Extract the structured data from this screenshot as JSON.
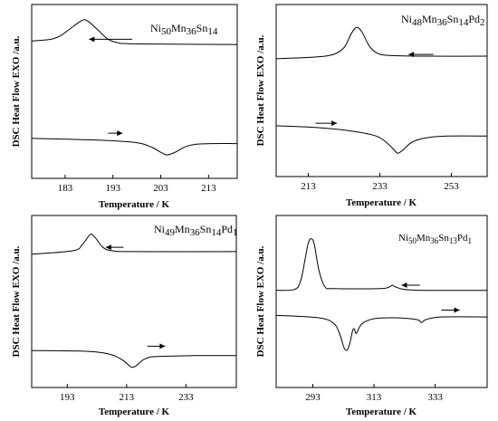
{
  "chart_data": [
    {
      "type": "line",
      "id": "p1",
      "label": {
        "element": "Ni",
        "s1": "50",
        "mn": "Mn",
        "s2": "36",
        "sn": "Sn",
        "s3": "14",
        "pd": "",
        "s4": ""
      },
      "ylabel": "DSC Heat Flow EXO /a.u.",
      "xlabel": "Temperature / K",
      "xlim": [
        176,
        219
      ],
      "ylim": [
        0,
        1
      ],
      "xticks": [
        183,
        193,
        203,
        213
      ],
      "xtick_labels": [
        "183",
        "193",
        "203",
        "213"
      ],
      "series": [
        {
          "direction": "cooling",
          "arrow": "left",
          "arrow_x": [
            188,
            197
          ],
          "arrow_y": 0.8,
          "points": [
            [
              176,
              0.79
            ],
            [
              180,
              0.8
            ],
            [
              182,
              0.82
            ],
            [
              184,
              0.86
            ],
            [
              186,
              0.9
            ],
            [
              187,
              0.913
            ],
            [
              188,
              0.9
            ],
            [
              190,
              0.85
            ],
            [
              192,
              0.8
            ],
            [
              194,
              0.78
            ],
            [
              196,
              0.775
            ],
            [
              205,
              0.772
            ],
            [
              219,
              0.77
            ]
          ]
        },
        {
          "direction": "heating",
          "arrow": "right",
          "arrow_x": [
            192,
            195
          ],
          "arrow_y": 0.26,
          "points": [
            [
              176,
              0.23
            ],
            [
              190,
              0.22
            ],
            [
              198,
              0.205
            ],
            [
              201,
              0.18
            ],
            [
              203,
              0.15
            ],
            [
              204.3,
              0.135
            ],
            [
              206,
              0.15
            ],
            [
              208,
              0.18
            ],
            [
              210,
              0.195
            ],
            [
              214,
              0.2
            ],
            [
              219,
              0.2
            ]
          ]
        }
      ]
    },
    {
      "type": "line",
      "id": "p2",
      "label": {
        "element": "Ni",
        "s1": "48",
        "mn": "Mn",
        "s2": "36",
        "sn": "Sn",
        "s3": "14",
        "pd": "Pd",
        "s4": "2"
      },
      "ylabel": "DSC Heat Flow EXO /a.u.",
      "xlabel": "Temperature / K",
      "xlim": [
        204,
        263
      ],
      "ylim": [
        0,
        1
      ],
      "xticks": [
        213,
        233,
        253
      ],
      "xtick_labels": [
        "213",
        "233",
        "253"
      ],
      "series": [
        {
          "direction": "cooling",
          "arrow": "left",
          "arrow_x": [
            241,
            248
          ],
          "arrow_y": 0.71,
          "points": [
            [
              204,
              0.685
            ],
            [
              215,
              0.695
            ],
            [
              220,
              0.71
            ],
            [
              223,
              0.75
            ],
            [
              225,
              0.83
            ],
            [
              226.5,
              0.868
            ],
            [
              228,
              0.84
            ],
            [
              230,
              0.76
            ],
            [
              232,
              0.72
            ],
            [
              235,
              0.705
            ],
            [
              245,
              0.7
            ],
            [
              263,
              0.7
            ]
          ]
        },
        {
          "direction": "heating",
          "arrow": "right",
          "arrow_x": [
            215,
            221
          ],
          "arrow_y": 0.31,
          "points": [
            [
              204,
              0.295
            ],
            [
              215,
              0.285
            ],
            [
              225,
              0.265
            ],
            [
              232,
              0.235
            ],
            [
              235,
              0.195
            ],
            [
              237,
              0.155
            ],
            [
              238,
              0.135
            ],
            [
              239.5,
              0.155
            ],
            [
              242,
              0.2
            ],
            [
              246,
              0.225
            ],
            [
              252,
              0.235
            ],
            [
              263,
              0.235
            ]
          ]
        }
      ]
    },
    {
      "type": "line",
      "id": "p3",
      "label": {
        "element": "Ni",
        "s1": "49",
        "mn": "Mn",
        "s2": "36",
        "sn": "Sn",
        "s3": "14",
        "pd": "Pd",
        "s4": "1"
      },
      "ylabel": "DSC Heat Flow EXO /a.u.",
      "xlabel": "Temperature / K",
      "xlim": [
        181,
        250
      ],
      "ylim": [
        0,
        1
      ],
      "xticks": [
        193,
        213,
        233
      ],
      "xtick_labels": [
        "193",
        "213",
        "233"
      ],
      "series": [
        {
          "direction": "cooling",
          "arrow": "left",
          "arrow_x": [
            206,
            212
          ],
          "arrow_y": 0.815,
          "points": [
            [
              181,
              0.775
            ],
            [
              195,
              0.795
            ],
            [
              198,
              0.83
            ],
            [
              200,
              0.875
            ],
            [
              201,
              0.892
            ],
            [
              202.5,
              0.87
            ],
            [
              205,
              0.815
            ],
            [
              208,
              0.795
            ],
            [
              215,
              0.79
            ],
            [
              250,
              0.79
            ]
          ]
        },
        {
          "direction": "heating",
          "arrow": "right",
          "arrow_x": [
            220,
            226
          ],
          "arrow_y": 0.24,
          "points": [
            [
              181,
              0.215
            ],
            [
              200,
              0.21
            ],
            [
              208,
              0.19
            ],
            [
              212,
              0.155
            ],
            [
              214,
              0.125
            ],
            [
              215,
              0.117
            ],
            [
              216.5,
              0.13
            ],
            [
              219,
              0.165
            ],
            [
              223,
              0.18
            ],
            [
              235,
              0.185
            ],
            [
              250,
              0.185
            ]
          ]
        }
      ]
    },
    {
      "type": "line",
      "id": "p4",
      "label": {
        "element": "Ni",
        "s1": "50",
        "mn": "Mn",
        "s2": "36",
        "sn": "Sn",
        "s3": "13",
        "pd": "Pd",
        "s4": "1"
      },
      "ylabel": "DSC Heat Flow EXO /a.u.",
      "xlabel": "Temperature / K",
      "xlim": [
        281,
        350
      ],
      "ylim": [
        0,
        1
      ],
      "xticks": [
        293,
        313,
        333
      ],
      "xtick_labels": [
        "293",
        "313",
        "333"
      ],
      "series": [
        {
          "direction": "cooling",
          "arrow": "left",
          "arrow_x": [
            322,
            328
          ],
          "arrow_y": 0.595,
          "points": [
            [
              281,
              0.565
            ],
            [
              287,
              0.57
            ],
            [
              289,
              0.62
            ],
            [
              290.5,
              0.75
            ],
            [
              291.5,
              0.84
            ],
            [
              292.5,
              0.865
            ],
            [
              293.5,
              0.83
            ],
            [
              295,
              0.68
            ],
            [
              297,
              0.585
            ],
            [
              300,
              0.575
            ],
            [
              315,
              0.575
            ],
            [
              318,
              0.585
            ],
            [
              319,
              0.595
            ],
            [
              320,
              0.585
            ],
            [
              323,
              0.57
            ],
            [
              330,
              0.565
            ],
            [
              350,
              0.565
            ]
          ]
        },
        {
          "direction": "heating",
          "arrow": "right",
          "arrow_x": [
            335,
            341
          ],
          "arrow_y": 0.45,
          "points": [
            [
              281,
              0.42
            ],
            [
              295,
              0.405
            ],
            [
              300,
              0.37
            ],
            [
              302,
              0.3
            ],
            [
              303,
              0.24
            ],
            [
              304,
              0.215
            ],
            [
              305,
              0.25
            ],
            [
              306,
              0.33
            ],
            [
              306.6,
              0.34
            ],
            [
              307.2,
              0.315
            ],
            [
              309,
              0.37
            ],
            [
              313,
              0.4
            ],
            [
              320,
              0.405
            ],
            [
              327,
              0.395
            ],
            [
              328.5,
              0.378
            ],
            [
              330,
              0.395
            ],
            [
              335,
              0.41
            ],
            [
              350,
              0.41
            ]
          ]
        }
      ]
    }
  ]
}
